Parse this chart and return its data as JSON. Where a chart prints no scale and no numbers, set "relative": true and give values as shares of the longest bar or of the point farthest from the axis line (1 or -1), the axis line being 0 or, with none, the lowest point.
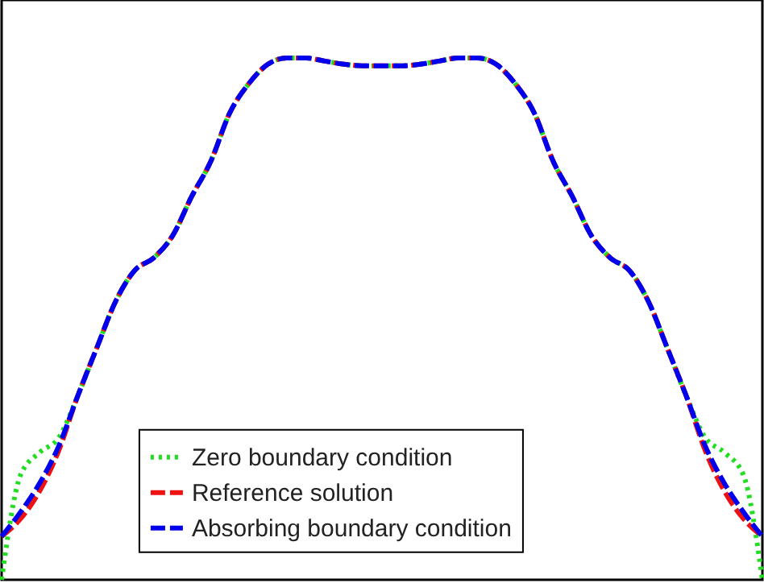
{
  "chart_data": {
    "type": "line",
    "relative": true,
    "legend": "bottom",
    "categories": [
      null,
      null,
      null,
      null,
      null,
      null,
      null,
      null,
      null,
      null,
      null,
      null,
      null,
      null,
      null,
      null,
      null,
      null,
      null,
      null,
      null,
      null,
      null,
      null,
      null,
      null,
      null,
      null,
      null,
      null,
      null,
      null,
      null,
      null,
      null,
      null,
      null,
      null,
      null,
      null,
      null
    ],
    "series": [
      {
        "name": "Zero boundary condition",
        "color": "#22dd22",
        "line_style": "dotted",
        "values": [
          0,
          0.201,
          0.244,
          0.272,
          0.352,
          0.444,
          0.534,
          0.593,
          0.617,
          0.66,
          0.735,
          0.802,
          0.895,
          0.951,
          0.988,
          1,
          1,
          0.994,
          0.988,
          0.985,
          0.985,
          0.985,
          0.988,
          0.994,
          1,
          1,
          0.988,
          0.951,
          0.895,
          0.802,
          0.735,
          0.66,
          0.617,
          0.593,
          0.534,
          0.444,
          0.352,
          0.272,
          0.244,
          0.201,
          0
        ]
      },
      {
        "name": "Reference solution",
        "color": "#ee1111",
        "line_style": "dashed",
        "values": [
          0.083,
          0.117,
          0.17,
          0.247,
          0.352,
          0.444,
          0.534,
          0.593,
          0.617,
          0.66,
          0.735,
          0.802,
          0.895,
          0.951,
          0.988,
          1,
          1,
          0.994,
          0.988,
          0.985,
          0.985,
          0.985,
          0.988,
          0.994,
          1,
          1,
          0.988,
          0.951,
          0.895,
          0.802,
          0.735,
          0.66,
          0.617,
          0.593,
          0.534,
          0.444,
          0.352,
          0.247,
          0.17,
          0.117,
          0.083
        ]
      },
      {
        "name": "Absorbing boundary condition",
        "color": "#0000ee",
        "line_style": "dashed",
        "values": [
          0.083,
          0.13,
          0.185,
          0.256,
          0.352,
          0.444,
          0.534,
          0.593,
          0.617,
          0.66,
          0.735,
          0.802,
          0.895,
          0.951,
          0.988,
          1,
          1,
          0.994,
          0.988,
          0.985,
          0.985,
          0.985,
          0.988,
          0.994,
          1,
          1,
          0.988,
          0.951,
          0.895,
          0.802,
          0.735,
          0.66,
          0.617,
          0.593,
          0.534,
          0.444,
          0.352,
          0.256,
          0.185,
          0.13,
          0.083
        ]
      }
    ]
  }
}
